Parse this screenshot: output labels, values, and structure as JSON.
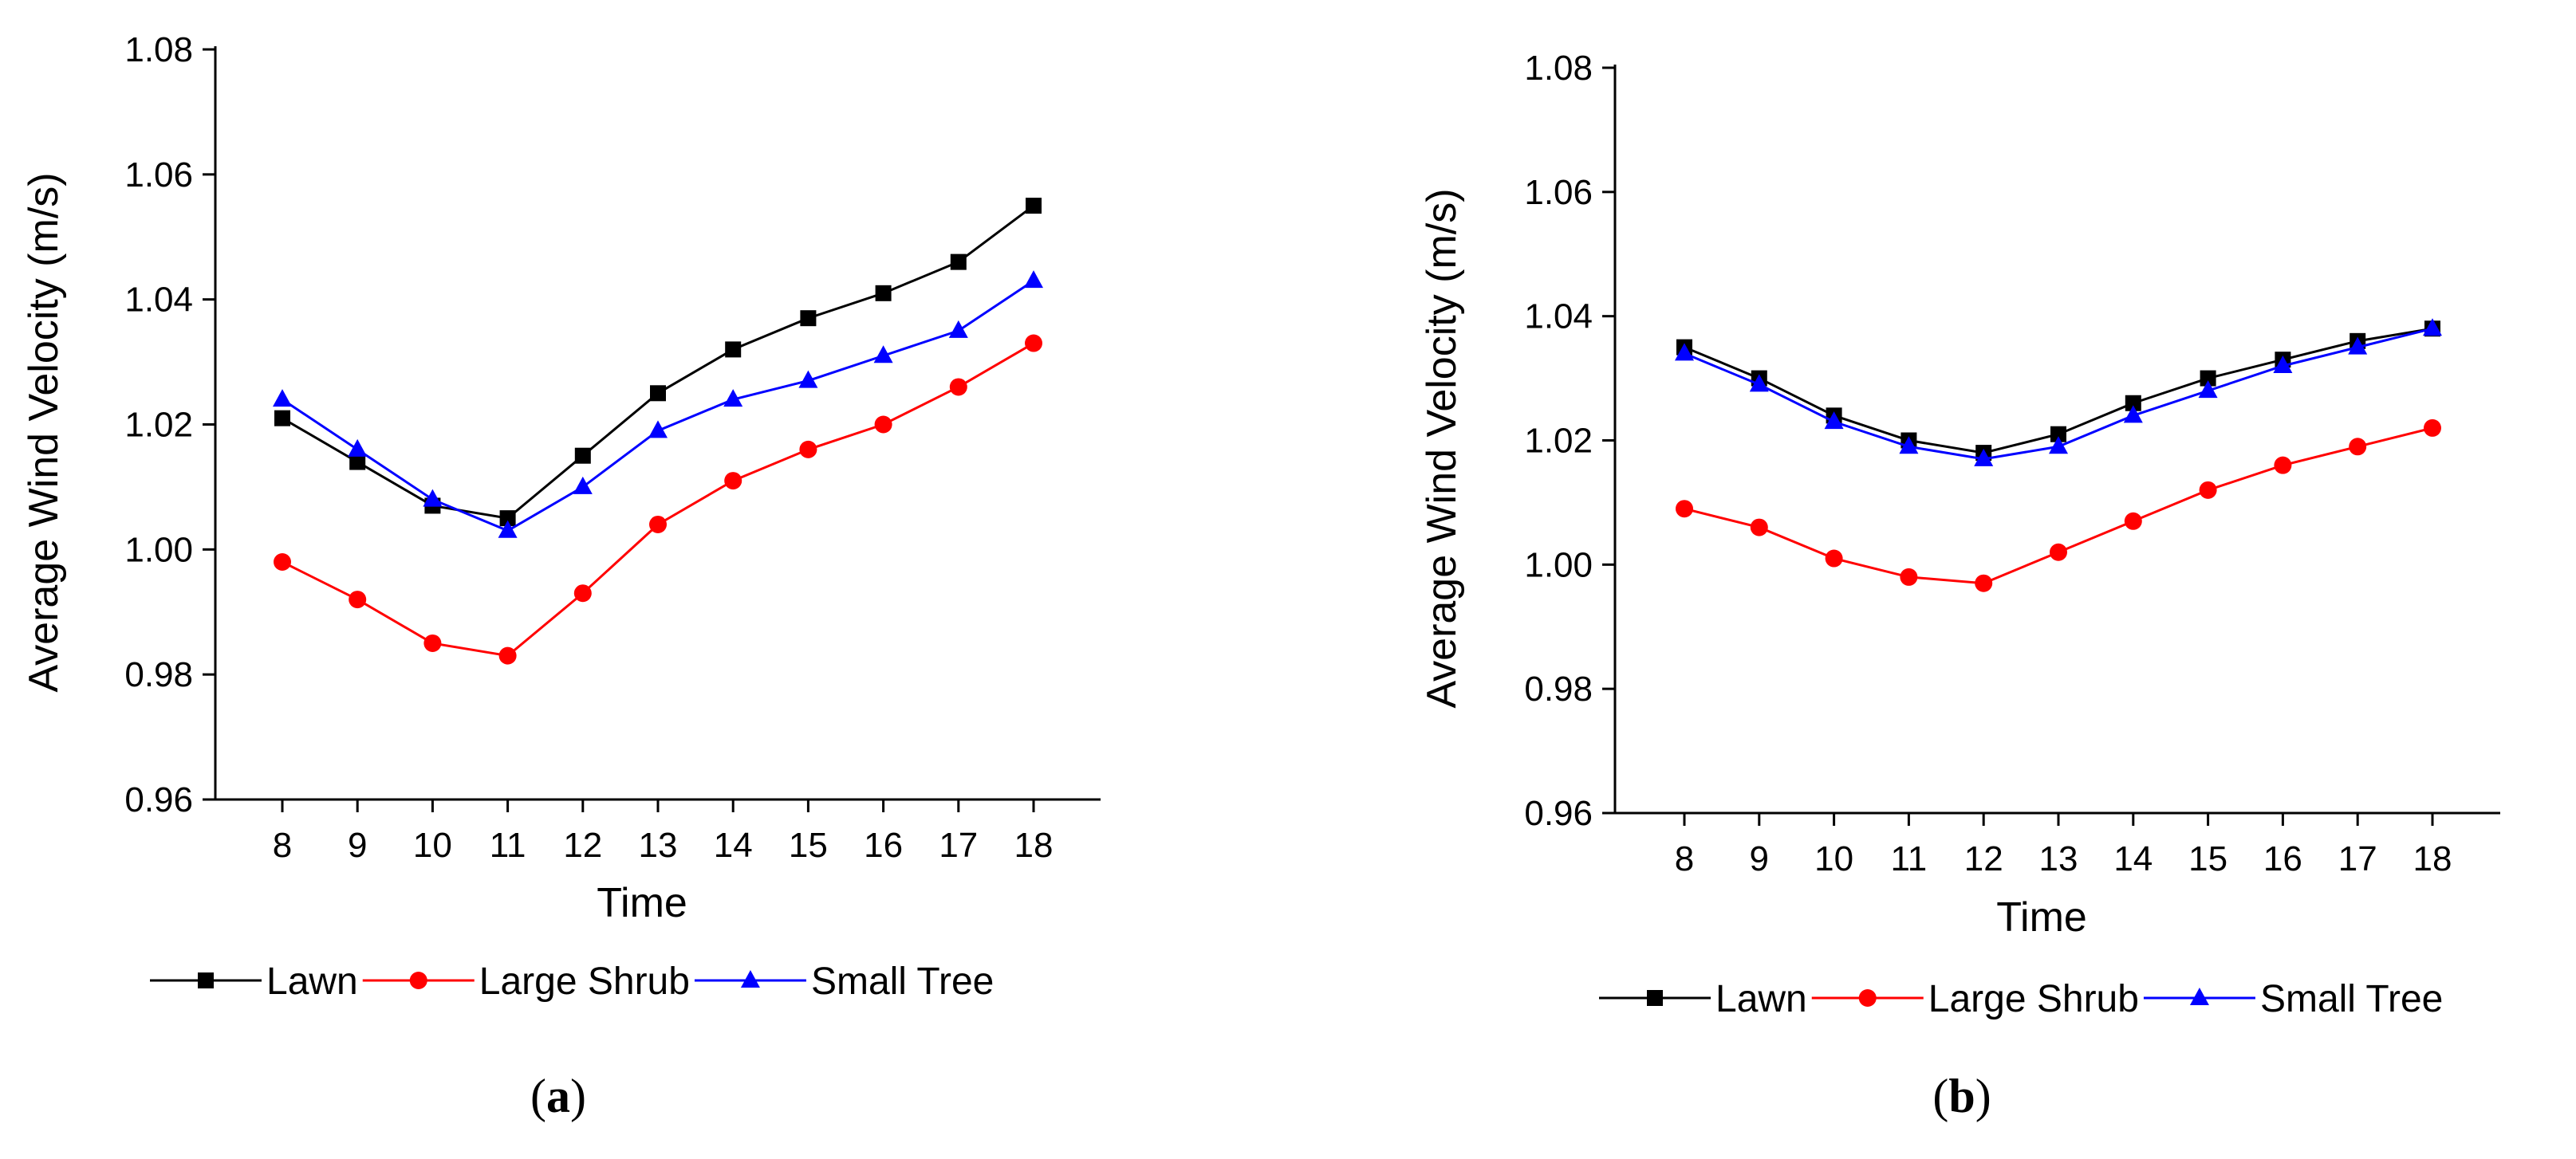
{
  "chart_data": [
    {
      "panel": "a",
      "type": "line",
      "caption": {
        "open": "(",
        "letter": "a",
        "close": ")"
      },
      "xlabel": "Time",
      "ylabel": "Average Wind Velocity (m/s)",
      "categories": [
        "8",
        "9",
        "10",
        "11",
        "12",
        "13",
        "14",
        "15",
        "16",
        "17",
        "18"
      ],
      "ylim": [
        0.96,
        1.08
      ],
      "yticks": [
        "0.96",
        "0.98",
        "1.00",
        "1.02",
        "1.04",
        "1.06",
        "1.08"
      ],
      "legend": "bottom",
      "series": [
        {
          "name": "Lawn",
          "color": "#000000",
          "marker": "square",
          "values": [
            1.021,
            1.014,
            1.007,
            1.005,
            1.015,
            1.025,
            1.032,
            1.037,
            1.041,
            1.046,
            1.055
          ]
        },
        {
          "name": "Large Shrub",
          "color": "#ff0000",
          "marker": "circle",
          "values": [
            0.998,
            0.992,
            0.985,
            0.983,
            0.993,
            1.004,
            1.011,
            1.016,
            1.02,
            1.026,
            1.033
          ]
        },
        {
          "name": "Small Tree",
          "color": "#0000ff",
          "marker": "triangle",
          "values": [
            1.024,
            1.016,
            1.008,
            1.003,
            1.01,
            1.019,
            1.024,
            1.027,
            1.031,
            1.035,
            1.043
          ]
        }
      ]
    },
    {
      "panel": "b",
      "type": "line",
      "caption": {
        "open": "(",
        "letter": "b",
        "close": ")"
      },
      "xlabel": "Time",
      "ylabel": "Average Wind Velocity (m/s)",
      "categories": [
        "8",
        "9",
        "10",
        "11",
        "12",
        "13",
        "14",
        "15",
        "16",
        "17",
        "18"
      ],
      "ylim": [
        0.96,
        1.08
      ],
      "yticks": [
        "0.96",
        "0.98",
        "1.00",
        "1.02",
        "1.04",
        "1.06",
        "1.08"
      ],
      "legend": "bottom",
      "series": [
        {
          "name": "Lawn",
          "color": "#000000",
          "marker": "square",
          "values": [
            1.035,
            1.03,
            1.024,
            1.02,
            1.018,
            1.021,
            1.026,
            1.03,
            1.033,
            1.036,
            1.038
          ]
        },
        {
          "name": "Large Shrub",
          "color": "#ff0000",
          "marker": "circle",
          "values": [
            1.009,
            1.006,
            1.001,
            0.998,
            0.997,
            1.002,
            1.007,
            1.012,
            1.016,
            1.019,
            1.022
          ]
        },
        {
          "name": "Small Tree",
          "color": "#0000ff",
          "marker": "triangle",
          "values": [
            1.034,
            1.029,
            1.023,
            1.019,
            1.017,
            1.019,
            1.024,
            1.028,
            1.032,
            1.035,
            1.038
          ]
        }
      ]
    }
  ]
}
